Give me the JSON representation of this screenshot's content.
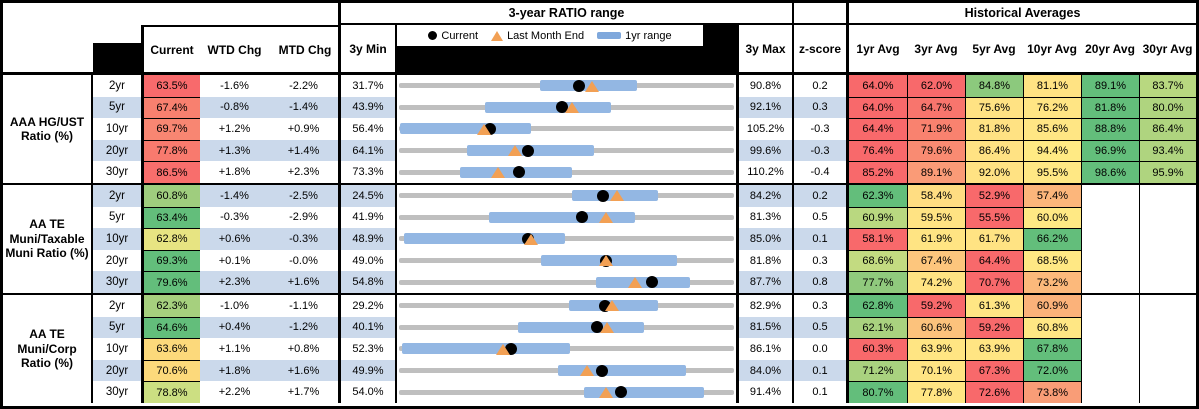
{
  "header": {
    "range_title": "3-year RATIO range",
    "historical_title": "Historical Averages",
    "legend": {
      "current": "Current",
      "last_month_end": "Last Month End",
      "range": "1yr range"
    },
    "cols": {
      "current": "Current",
      "wtd": "WTD Chg",
      "mtd": "MTD Chg",
      "min": "3y Min",
      "max": "3y Max",
      "z": "z-score"
    },
    "avg_cols": [
      "1yr Avg",
      "3yr Avg",
      "5yr Avg",
      "10yr Avg",
      "20yr Avg",
      "30yr Avg"
    ]
  },
  "colors": {
    "stripe": "#CBD9EB",
    "track": "#BFBFBF",
    "bar": "#93B7E3",
    "dot": "#000000",
    "triangle": "#F2A054",
    "legend_bar": "#7FA8DC",
    "header_black": "#000000",
    "scale_red": "#F8696B",
    "scale_yellow": "#FFE583",
    "scale_green": "#63BE7B"
  },
  "chart_data": {
    "type": "table",
    "groups": [
      {
        "label": "AAA HG/UST Ratio (%)",
        "rows": [
          {
            "tenor": "2yr",
            "current": "63.5%",
            "current_bg": "#F86A6C",
            "wtd": "-1.6%",
            "mtd": "-2.2%",
            "min_3y": "31.7%",
            "max_3y": "90.8%",
            "z": "0.2",
            "range": {
              "min": 31.7,
              "max": 90.8,
              "yr1_low": 56.5,
              "yr1_high": 73.7,
              "current": 63.5,
              "last_month_end": 65.7
            },
            "avgs": [
              {
                "v": "64.0%",
                "bg": "#F8696B"
              },
              {
                "v": "62.0%",
                "bg": "#F8696B"
              },
              {
                "v": "84.8%",
                "bg": "#8CC97D"
              },
              {
                "v": "81.1%",
                "bg": "#FFE383"
              },
              {
                "v": "89.1%",
                "bg": "#63BE7B"
              },
              {
                "v": "83.7%",
                "bg": "#B8D880"
              }
            ]
          },
          {
            "tenor": "5yr",
            "current": "67.4%",
            "current_bg": "#F8806F",
            "wtd": "-0.8%",
            "mtd": "-1.4%",
            "min_3y": "43.9%",
            "max_3y": "92.1%",
            "z": "0.3",
            "range": {
              "min": 43.9,
              "max": 92.1,
              "yr1_low": 56.3,
              "yr1_high": 74.4,
              "current": 67.4,
              "last_month_end": 68.8
            },
            "avgs": [
              {
                "v": "64.0%",
                "bg": "#F8696B"
              },
              {
                "v": "64.7%",
                "bg": "#F8756D"
              },
              {
                "v": "75.6%",
                "bg": "#FFE283"
              },
              {
                "v": "76.2%",
                "bg": "#FFE584"
              },
              {
                "v": "81.8%",
                "bg": "#63BE7B"
              },
              {
                "v": "80.0%",
                "bg": "#AFD47F"
              }
            ]
          },
          {
            "tenor": "10yr",
            "current": "69.7%",
            "current_bg": "#F88672",
            "wtd": "+1.2%",
            "mtd": "+0.9%",
            "min_3y": "56.4%",
            "max_3y": "105.2%",
            "z": "-0.3",
            "range": {
              "min": 56.4,
              "max": 105.2,
              "yr1_low": 56.5,
              "yr1_high": 75.6,
              "current": 69.7,
              "last_month_end": 68.8
            },
            "avgs": [
              {
                "v": "64.4%",
                "bg": "#F8696B"
              },
              {
                "v": "71.9%",
                "bg": "#F9826F"
              },
              {
                "v": "81.8%",
                "bg": "#FFE283"
              },
              {
                "v": "85.6%",
                "bg": "#FFE684"
              },
              {
                "v": "88.8%",
                "bg": "#63BE7B"
              },
              {
                "v": "86.4%",
                "bg": "#AFD47F"
              }
            ]
          },
          {
            "tenor": "20yr",
            "current": "77.8%",
            "current_bg": "#F87A6E",
            "wtd": "+1.3%",
            "mtd": "+1.4%",
            "min_3y": "64.1%",
            "max_3y": "99.6%",
            "z": "-0.3",
            "range": {
              "min": 64.1,
              "max": 99.6,
              "yr1_low": 71.3,
              "yr1_high": 84.8,
              "current": 77.8,
              "last_month_end": 76.4
            },
            "avgs": [
              {
                "v": "76.4%",
                "bg": "#F8696B"
              },
              {
                "v": "79.6%",
                "bg": "#F98B72"
              },
              {
                "v": "86.4%",
                "bg": "#FFE283"
              },
              {
                "v": "94.4%",
                "bg": "#FFEA84"
              },
              {
                "v": "96.9%",
                "bg": "#63BE7B"
              },
              {
                "v": "93.4%",
                "bg": "#AFD47F"
              }
            ]
          },
          {
            "tenor": "30yr",
            "current": "86.5%",
            "current_bg": "#F86E6C",
            "wtd": "+1.8%",
            "mtd": "+2.3%",
            "min_3y": "73.3%",
            "max_3y": "110.2%",
            "z": "-0.4",
            "range": {
              "min": 73.3,
              "max": 110.2,
              "yr1_low": 80.0,
              "yr1_high": 92.4,
              "current": 86.5,
              "last_month_end": 84.2
            },
            "avgs": [
              {
                "v": "85.2%",
                "bg": "#F8696B"
              },
              {
                "v": "89.1%",
                "bg": "#FA9B77"
              },
              {
                "v": "92.0%",
                "bg": "#FFE283"
              },
              {
                "v": "95.5%",
                "bg": "#FFE884"
              },
              {
                "v": "98.6%",
                "bg": "#63BE7B"
              },
              {
                "v": "95.9%",
                "bg": "#AFD47F"
              }
            ]
          }
        ]
      },
      {
        "label": "AA TE Muni/Taxable Muni Ratio (%)",
        "rows": [
          {
            "tenor": "2yr",
            "current": "60.8%",
            "current_bg": "#9FCD7E",
            "wtd": "-1.4%",
            "mtd": "-2.5%",
            "min_3y": "24.5%",
            "max_3y": "84.2%",
            "z": "0.2",
            "range": {
              "min": 24.5,
              "max": 84.2,
              "yr1_low": 55.4,
              "yr1_high": 70.6,
              "current": 60.8,
              "last_month_end": 63.3
            },
            "avgs": [
              {
                "v": "62.3%",
                "bg": "#63BE7B"
              },
              {
                "v": "58.4%",
                "bg": "#FFDD82"
              },
              {
                "v": "52.9%",
                "bg": "#F8696B"
              },
              {
                "v": "57.4%",
                "bg": "#FCB67B"
              },
              {
                "v": "",
                "bg": ""
              },
              {
                "v": "",
                "bg": ""
              }
            ]
          },
          {
            "tenor": "5yr",
            "current": "63.4%",
            "current_bg": "#63BE7B",
            "wtd": "-0.3%",
            "mtd": "-2.9%",
            "min_3y": "41.9%",
            "max_3y": "81.3%",
            "z": "0.5",
            "range": {
              "min": 41.9,
              "max": 81.3,
              "yr1_low": 52.5,
              "yr1_high": 69.6,
              "current": 63.4,
              "last_month_end": 66.3
            },
            "avgs": [
              {
                "v": "60.9%",
                "bg": "#B9D880"
              },
              {
                "v": "59.5%",
                "bg": "#FFE383"
              },
              {
                "v": "55.5%",
                "bg": "#F8696B"
              },
              {
                "v": "60.0%",
                "bg": "#FFE984"
              },
              {
                "v": "",
                "bg": ""
              },
              {
                "v": "",
                "bg": ""
              }
            ]
          },
          {
            "tenor": "10yr",
            "current": "62.8%",
            "current_bg": "#E7E482",
            "wtd": "+0.6%",
            "mtd": "-0.3%",
            "min_3y": "48.9%",
            "max_3y": "85.0%",
            "z": "0.1",
            "range": {
              "min": 48.9,
              "max": 85.0,
              "yr1_low": 49.4,
              "yr1_high": 66.8,
              "current": 62.8,
              "last_month_end": 63.1
            },
            "avgs": [
              {
                "v": "58.1%",
                "bg": "#F8696B"
              },
              {
                "v": "61.9%",
                "bg": "#FFE483"
              },
              {
                "v": "61.7%",
                "bg": "#FFE383"
              },
              {
                "v": "66.2%",
                "bg": "#63BE7B"
              },
              {
                "v": "",
                "bg": ""
              },
              {
                "v": "",
                "bg": ""
              }
            ]
          },
          {
            "tenor": "20yr",
            "current": "69.3%",
            "current_bg": "#63BE7B",
            "wtd": "+0.1%",
            "mtd": "-0.0%",
            "min_3y": "49.0%",
            "max_3y": "81.8%",
            "z": "0.3",
            "range": {
              "min": 49.0,
              "max": 81.8,
              "yr1_low": 62.9,
              "yr1_high": 76.2,
              "current": 69.3,
              "last_month_end": 69.3
            },
            "avgs": [
              {
                "v": "68.6%",
                "bg": "#C3DB81"
              },
              {
                "v": "67.4%",
                "bg": "#FDC67D"
              },
              {
                "v": "64.4%",
                "bg": "#F8696B"
              },
              {
                "v": "68.5%",
                "bg": "#FFE884"
              },
              {
                "v": "",
                "bg": ""
              },
              {
                "v": "",
                "bg": ""
              }
            ]
          },
          {
            "tenor": "30yr",
            "current": "79.6%",
            "current_bg": "#63BE7B",
            "wtd": "+2.3%",
            "mtd": "+1.6%",
            "min_3y": "54.8%",
            "max_3y": "87.7%",
            "z": "0.8",
            "range": {
              "min": 54.8,
              "max": 87.7,
              "yr1_low": 74.1,
              "yr1_high": 83.4,
              "current": 79.6,
              "last_month_end": 78.0
            },
            "avgs": [
              {
                "v": "77.7%",
                "bg": "#90CA7D"
              },
              {
                "v": "74.2%",
                "bg": "#FFE383"
              },
              {
                "v": "70.7%",
                "bg": "#F8696B"
              },
              {
                "v": "73.2%",
                "bg": "#FCB97B"
              },
              {
                "v": "",
                "bg": ""
              },
              {
                "v": "",
                "bg": ""
              }
            ]
          }
        ]
      },
      {
        "label": "AA TE Muni/Corp Ratio (%)",
        "rows": [
          {
            "tenor": "2yr",
            "current": "62.3%",
            "current_bg": "#A6D07E",
            "wtd": "-1.0%",
            "mtd": "-1.1%",
            "min_3y": "29.2%",
            "max_3y": "82.9%",
            "z": "0.3",
            "range": {
              "min": 29.2,
              "max": 82.9,
              "yr1_low": 56.4,
              "yr1_high": 70.7,
              "current": 62.3,
              "last_month_end": 63.4
            },
            "avgs": [
              {
                "v": "62.8%",
                "bg": "#63BE7B"
              },
              {
                "v": "59.2%",
                "bg": "#F8696B"
              },
              {
                "v": "61.3%",
                "bg": "#FFE684"
              },
              {
                "v": "60.9%",
                "bg": "#FBB27A"
              },
              {
                "v": "",
                "bg": ""
              },
              {
                "v": "",
                "bg": ""
              }
            ]
          },
          {
            "tenor": "5yr",
            "current": "64.6%",
            "current_bg": "#63BE7B",
            "wtd": "+0.4%",
            "mtd": "-1.2%",
            "min_3y": "40.1%",
            "max_3y": "81.5%",
            "z": "0.5",
            "range": {
              "min": 40.1,
              "max": 81.5,
              "yr1_low": 54.8,
              "yr1_high": 70.4,
              "current": 64.6,
              "last_month_end": 65.8
            },
            "avgs": [
              {
                "v": "62.1%",
                "bg": "#A9D27F"
              },
              {
                "v": "60.6%",
                "bg": "#FCC27C"
              },
              {
                "v": "59.2%",
                "bg": "#F8696B"
              },
              {
                "v": "60.8%",
                "bg": "#FFE784"
              },
              {
                "v": "",
                "bg": ""
              },
              {
                "v": "",
                "bg": ""
              }
            ]
          },
          {
            "tenor": "10yr",
            "current": "63.6%",
            "current_bg": "#FCD97B",
            "wtd": "+1.1%",
            "mtd": "+0.8%",
            "min_3y": "52.3%",
            "max_3y": "86.1%",
            "z": "0.0",
            "range": {
              "min": 52.3,
              "max": 86.1,
              "yr1_low": 52.6,
              "yr1_high": 69.6,
              "current": 63.6,
              "last_month_end": 62.8
            },
            "avgs": [
              {
                "v": "60.3%",
                "bg": "#F8696B"
              },
              {
                "v": "63.9%",
                "bg": "#FFE583"
              },
              {
                "v": "63.9%",
                "bg": "#FFE583"
              },
              {
                "v": "67.8%",
                "bg": "#63BE7B"
              },
              {
                "v": "",
                "bg": ""
              },
              {
                "v": "",
                "bg": ""
              }
            ]
          },
          {
            "tenor": "20yr",
            "current": "70.6%",
            "current_bg": "#FCD97B",
            "wtd": "+1.8%",
            "mtd": "+1.6%",
            "min_3y": "49.9%",
            "max_3y": "84.0%",
            "z": "0.1",
            "range": {
              "min": 49.9,
              "max": 84.0,
              "yr1_low": 66.1,
              "yr1_high": 79.1,
              "current": 70.6,
              "last_month_end": 69.0
            },
            "avgs": [
              {
                "v": "71.2%",
                "bg": "#A9D27F"
              },
              {
                "v": "70.1%",
                "bg": "#FFE483"
              },
              {
                "v": "67.3%",
                "bg": "#F8696B"
              },
              {
                "v": "72.0%",
                "bg": "#63BE7B"
              },
              {
                "v": "",
                "bg": ""
              },
              {
                "v": "",
                "bg": ""
              }
            ]
          },
          {
            "tenor": "30yr",
            "current": "78.8%",
            "current_bg": "#CCDF82",
            "wtd": "+2.2%",
            "mtd": "+1.7%",
            "min_3y": "54.0%",
            "max_3y": "91.4%",
            "z": "0.1",
            "range": {
              "min": 54.0,
              "max": 91.4,
              "yr1_low": 74.6,
              "yr1_high": 88.0,
              "current": 78.8,
              "last_month_end": 77.1
            },
            "avgs": [
              {
                "v": "80.7%",
                "bg": "#63BE7B"
              },
              {
                "v": "77.8%",
                "bg": "#FFE583"
              },
              {
                "v": "72.6%",
                "bg": "#F8696B"
              },
              {
                "v": "73.8%",
                "bg": "#F99D77"
              },
              {
                "v": "",
                "bg": ""
              },
              {
                "v": "",
                "bg": ""
              }
            ]
          }
        ]
      }
    ]
  }
}
